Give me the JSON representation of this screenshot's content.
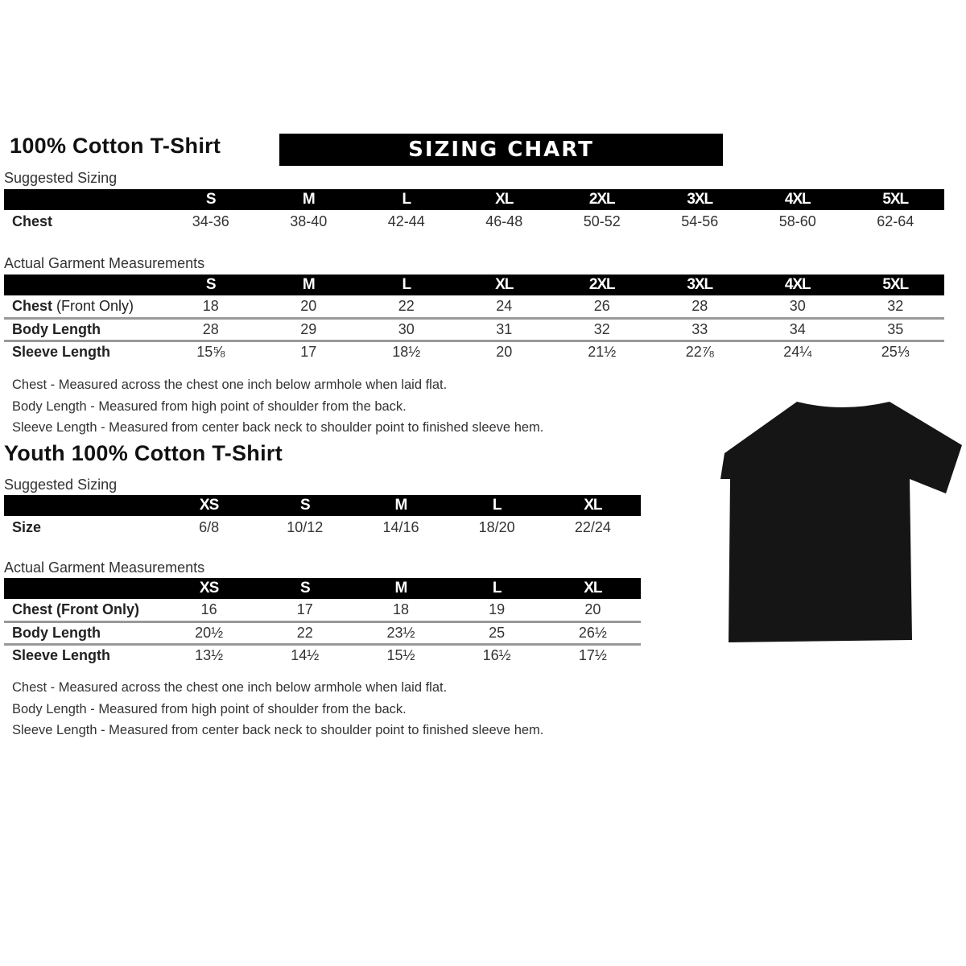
{
  "adult": {
    "title": "100% Cotton T-Shirt",
    "banner": "SIZING CHART",
    "suggested_label": "Suggested Sizing",
    "sizes": [
      "S",
      "M",
      "L",
      "XL",
      "2XL",
      "3XL",
      "4XL",
      "5XL"
    ],
    "suggested_rows": [
      {
        "label": "Chest",
        "values": [
          "34-36",
          "38-40",
          "42-44",
          "46-48",
          "50-52",
          "54-56",
          "58-60",
          "62-64"
        ]
      }
    ],
    "actual_label": "Actual Garment Measurements",
    "actual_rows": [
      {
        "label": "Chest",
        "label_note": "(Front Only)",
        "values": [
          "18",
          "20",
          "22",
          "24",
          "26",
          "28",
          "30",
          "32"
        ]
      },
      {
        "label": "Body Length",
        "values": [
          "28",
          "29",
          "30",
          "31",
          "32",
          "33",
          "34",
          "35"
        ]
      },
      {
        "label": "Sleeve Length",
        "values": [
          "15⅝",
          "17",
          "18½",
          "20",
          "21½",
          "22⅞",
          "24¼",
          "25⅓"
        ]
      }
    ],
    "notes": [
      "Chest - Measured across the chest one inch below armhole when laid flat.",
      "Body Length - Measured from high point of shoulder from the back.",
      "Sleeve Length - Measured from center back neck to shoulder point to finished sleeve hem."
    ]
  },
  "youth": {
    "title": "Youth 100% Cotton T-Shirt",
    "suggested_label": "Suggested Sizing",
    "sizes": [
      "XS",
      "S",
      "M",
      "L",
      "XL"
    ],
    "suggested_rows": [
      {
        "label": "Size",
        "values": [
          "6/8",
          "10/12",
          "14/16",
          "18/20",
          "22/24"
        ]
      }
    ],
    "actual_label": "Actual Garment Measurements",
    "actual_rows": [
      {
        "label": "Chest (Front Only)",
        "values": [
          "16",
          "17",
          "18",
          "19",
          "20"
        ]
      },
      {
        "label": "Body Length",
        "values": [
          "20½",
          "22",
          "23½",
          "25",
          "26½"
        ]
      },
      {
        "label": "Sleeve Length",
        "values": [
          "13½",
          "14½",
          "15½",
          "16½",
          "17½"
        ]
      }
    ],
    "notes": [
      "Chest - Measured across the chest one inch below armhole when laid flat.",
      "Body Length - Measured from high point of shoulder from the back.",
      "Sleeve Length - Measured from center back neck to shoulder point to finished sleeve hem."
    ]
  },
  "tshirt_color": "#151515"
}
